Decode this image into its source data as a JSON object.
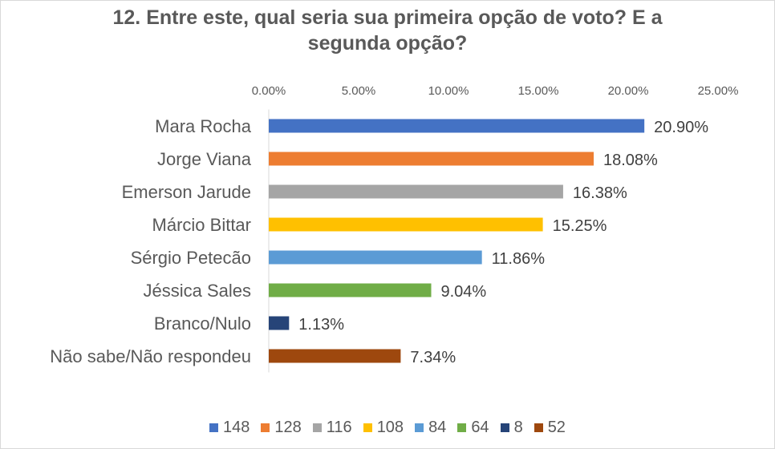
{
  "chart_data": {
    "type": "bar",
    "orientation": "horizontal",
    "title": "12. Entre este, qual seria sua primeira opção de voto? E a segunda opção?",
    "title_lines": [
      "12. Entre este, qual seria sua primeira opção de voto? E a",
      "segunda opção?"
    ],
    "xlim": [
      0,
      25
    ],
    "x_ticks": [
      "0.00%",
      "5.00%",
      "10.00%",
      "15.00%",
      "20.00%",
      "25.00%"
    ],
    "x_tick_values": [
      0,
      5,
      10,
      15,
      20,
      25
    ],
    "x_axis_position": "top",
    "grid": false,
    "legend_position": "bottom",
    "categories": [
      "Mara Rocha",
      "Jorge Viana",
      "Emerson Jarude",
      "Márcio Bittar",
      "Sérgio Petecão",
      "Jéssica Sales",
      "Branco/Nulo",
      "Não sabe/Não respondeu"
    ],
    "values": [
      20.9,
      18.08,
      16.38,
      15.25,
      11.86,
      9.04,
      1.13,
      7.34
    ],
    "data_labels": [
      "20.90%",
      "18.08%",
      "16.38%",
      "15.25%",
      "11.86%",
      "9.04%",
      "1.13%",
      "7.34%"
    ],
    "colors": [
      "#4472C4",
      "#ED7D31",
      "#A5A5A5",
      "#FFC000",
      "#5B9BD5",
      "#70AD47",
      "#264478",
      "#9E480E"
    ],
    "legend_entries": [
      "148",
      "128",
      "116",
      "108",
      "84",
      "64",
      "8",
      "52"
    ]
  }
}
